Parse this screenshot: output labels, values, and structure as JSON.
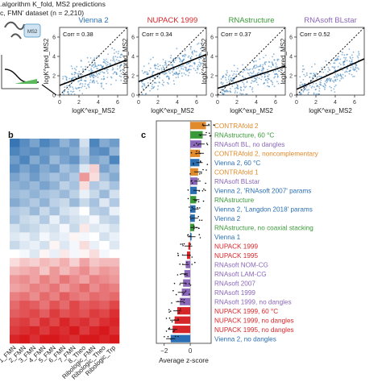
{
  "header": {
    "line1": ".algorithm K_fold, MS2 predictions",
    "line2": "c, FMN' dataset (n = 2,210)"
  },
  "panel_labels": {
    "b": "b",
    "c": "c"
  },
  "colors": {
    "scatter_point": "#2f7ab8",
    "fit_line": "#000000",
    "Vienna": "#2a6fb3",
    "NUPACK": "#d7262a",
    "RNAstructure": "#3a9a3a",
    "RNAsoft": "#8a67b8",
    "CONTRAfold": "#e08a2c",
    "heat_low": "#2166ac",
    "heat_mid": "#ffffff",
    "heat_high": "#d7191c"
  },
  "icons": [
    "ms2-rna-schematic-icon",
    "binding-curve-icon"
  ],
  "schematic_label": "MS2",
  "chart_data": [
    {
      "type": "scatter",
      "title": "Vienna 2",
      "title_color": "#2a6fb3",
      "annotation": "Corr = 0.38",
      "xlabel": "logK^exp_MS2",
      "ylabel": "logK^pred_MS2",
      "xlim": [
        0,
        7
      ],
      "ylim": [
        0,
        7
      ],
      "xticks": [
        0,
        2,
        4,
        6
      ],
      "yticks": [
        0,
        2,
        4,
        6
      ],
      "identity_line": true,
      "fit": {
        "slope": 0.38,
        "intercept": 1.0
      }
    },
    {
      "type": "scatter",
      "title": "NUPACK 1999",
      "title_color": "#d7262a",
      "annotation": "Corr = 0.34",
      "xlabel": "logK^exp_MS2",
      "ylabel": "logK^pred_MS2",
      "xlim": [
        0,
        7
      ],
      "ylim": [
        0,
        7
      ],
      "xticks": [
        0,
        2,
        4,
        6
      ],
      "yticks": [
        0,
        2,
        4,
        6
      ],
      "identity_line": true,
      "fit": {
        "slope": 0.4,
        "intercept": 1.4
      }
    },
    {
      "type": "scatter",
      "title": "RNAstructure",
      "title_color": "#3a9a3a",
      "annotation": "Corr = 0.37",
      "xlabel": "logK^exp_MS2",
      "ylabel": "logK^pred_MS2",
      "xlim": [
        0,
        7
      ],
      "ylim": [
        0,
        7
      ],
      "xticks": [
        0,
        2,
        4,
        6
      ],
      "yticks": [
        0,
        2,
        4,
        6
      ],
      "identity_line": true,
      "fit": {
        "slope": 0.33,
        "intercept": 0.7
      }
    },
    {
      "type": "scatter",
      "title": "RNAsoft BLstar",
      "title_color": "#8a67b8",
      "annotation": "Corr = 0.52",
      "xlabel": "logK^exp_MS2",
      "ylabel": "logK^pred_MS2",
      "xlim": [
        0,
        7
      ],
      "ylim": [
        0,
        7
      ],
      "xticks": [
        0,
        2,
        4,
        6
      ],
      "yticks": [
        0,
        2,
        4,
        6
      ],
      "identity_line": true,
      "fit": {
        "slope": 0.45,
        "intercept": 0.6
      }
    },
    {
      "type": "heatmap",
      "columns": [
        "1_FMN",
        "2_FMN",
        "3_FMN",
        "4_FMN",
        "5_FMN",
        "6_FMN",
        "7_FMN",
        "8_Theo",
        "Ribologic_FMN",
        "Ribologic_Theo",
        "Ribologic_Trp"
      ],
      "values": [
        [
          -1.8,
          -1.5,
          -1.2,
          -1.6,
          -1.4,
          -1.0,
          -1.3,
          -0.4,
          -1.6,
          -1.1,
          -1.3
        ],
        [
          -1.6,
          -1.4,
          -1.5,
          -1.3,
          -1.2,
          -1.3,
          -1.1,
          -0.6,
          -1.4,
          -1.5,
          -1.0
        ],
        [
          -1.3,
          -1.6,
          -1.1,
          -1.4,
          -0.9,
          -1.2,
          -1.4,
          -0.8,
          -1.2,
          -1.0,
          -1.6
        ],
        [
          -1.5,
          -1.2,
          -1.4,
          -1.1,
          -1.3,
          -0.8,
          -1.0,
          -0.3,
          0.4,
          -1.2,
          -0.9
        ],
        [
          -1.2,
          -1.0,
          -1.3,
          -1.0,
          -0.8,
          -1.0,
          -0.7,
          0.9,
          0.3,
          -0.8,
          -1.1
        ],
        [
          -1.0,
          -1.1,
          -0.9,
          -1.2,
          -1.0,
          -0.6,
          -0.8,
          0.3,
          -0.7,
          -0.5,
          -0.8
        ],
        [
          -0.9,
          -0.8,
          -1.0,
          -0.8,
          -0.7,
          -0.9,
          -0.6,
          -0.2,
          -0.5,
          -0.9,
          -0.4
        ],
        [
          -1.1,
          -0.9,
          -0.7,
          -1.0,
          -0.6,
          -0.5,
          -0.9,
          -0.5,
          -0.8,
          -0.3,
          -0.7
        ],
        [
          -0.7,
          -0.6,
          -0.9,
          -0.5,
          -0.8,
          -0.4,
          -0.3,
          0.0,
          -0.6,
          -0.7,
          -0.2
        ],
        [
          -0.8,
          -0.5,
          -0.4,
          -0.7,
          -0.2,
          -0.6,
          -0.4,
          -0.3,
          -0.1,
          -0.5,
          -0.6
        ],
        [
          -0.4,
          -0.6,
          -0.5,
          -0.3,
          -0.4,
          -0.1,
          -0.5,
          0.2,
          -0.3,
          -0.2,
          -0.4
        ],
        [
          -0.3,
          -0.2,
          -0.4,
          -0.1,
          -0.3,
          -0.2,
          0.1,
          -0.1,
          0.0,
          -0.4,
          -0.2
        ],
        [
          -0.5,
          -0.3,
          -0.2,
          -0.4,
          0.1,
          -0.3,
          -0.1,
          0.3,
          -0.2,
          0.0,
          -0.3
        ],
        [
          0.0,
          -0.1,
          -0.3,
          0.1,
          -0.2,
          0.2,
          -0.1,
          0.1,
          0.3,
          -0.1,
          0.0
        ],
        [
          0.3,
          0.5,
          0.4,
          0.6,
          0.5,
          0.7,
          0.4,
          0.8,
          0.5,
          0.6,
          0.6
        ],
        [
          0.6,
          0.7,
          0.8,
          0.5,
          0.9,
          0.6,
          0.8,
          1.0,
          0.7,
          0.9,
          0.8
        ],
        [
          0.9,
          1.0,
          0.8,
          1.1,
          0.9,
          1.2,
          1.0,
          0.8,
          1.1,
          1.0,
          0.9
        ],
        [
          0.8,
          0.9,
          1.1,
          1.0,
          1.2,
          0.9,
          1.1,
          1.3,
          1.0,
          1.2,
          1.1
        ],
        [
          1.1,
          1.2,
          1.0,
          1.3,
          1.1,
          1.4,
          1.2,
          1.1,
          1.3,
          1.2,
          1.3
        ],
        [
          1.3,
          1.5,
          1.4,
          1.2,
          1.5,
          1.3,
          1.6,
          1.4,
          1.5,
          1.4,
          1.6
        ],
        [
          1.4,
          1.5,
          1.6,
          1.4,
          1.7,
          1.5,
          1.6,
          1.5,
          1.7,
          1.6,
          1.8
        ],
        [
          1.6,
          1.7,
          1.5,
          1.8,
          1.6,
          1.9,
          1.7,
          1.8,
          1.6,
          1.8,
          1.9
        ],
        [
          1.7,
          1.8,
          1.9,
          1.7,
          1.9,
          1.8,
          2.0,
          1.7,
          1.9,
          2.0,
          1.8
        ],
        [
          1.9,
          2.0,
          1.8,
          2.0,
          2.0,
          1.9,
          1.8,
          2.0,
          2.0,
          1.9,
          2.0
        ]
      ],
      "value_range": [
        -2,
        2
      ]
    },
    {
      "type": "bar",
      "orientation": "horizontal",
      "xlabel": "Average z-score",
      "xlim": [
        -2.6,
        1.6
      ],
      "xticks": [
        -2,
        0
      ],
      "categories": [
        "CONTRAfold 2",
        "RNAstructure, 60 °C",
        "RNAsoft BL, no dangles",
        "CONTRAfold 2, noncomplementary",
        "Vienna 2, 60 °C",
        "CONTRAfold 1",
        "RNAsoft BLstar",
        "Vienna 2, 'RNAsoft 2007' params",
        "RNAstructure",
        "Vienna 2, 'Langdon 2018' params",
        "Vienna 2",
        "RNAstructure, no coaxial stacking",
        "Vienna 1",
        "NUPACK 1999",
        "NUPACK 1995",
        "RNAsoft NOM-CG",
        "RNAsoft LAM-CG",
        "RNAsoft 2007",
        "RNAsoft 1999",
        "RNAsoft 1999, no dangles",
        "NUPACK 1999, 60 °C",
        "NUPACK 1999, no dangles",
        "NUPACK 1995, no dangles",
        "Vienna 2, no dangles"
      ],
      "families": [
        "CONTRAfold",
        "RNAstructure",
        "RNAsoft",
        "CONTRAfold",
        "Vienna",
        "CONTRAfold",
        "RNAsoft",
        "Vienna",
        "RNAstructure",
        "Vienna",
        "Vienna",
        "RNAstructure",
        "Vienna",
        "NUPACK",
        "NUPACK",
        "RNAsoft",
        "RNAsoft",
        "RNAsoft",
        "RNAsoft",
        "RNAsoft",
        "NUPACK",
        "NUPACK",
        "NUPACK",
        "Vienna"
      ],
      "values": [
        1.2,
        0.95,
        0.85,
        0.75,
        0.7,
        0.6,
        0.55,
        0.5,
        0.45,
        0.4,
        0.35,
        0.3,
        0.1,
        -0.15,
        -0.25,
        -0.35,
        -0.45,
        -0.55,
        -0.65,
        -0.8,
        -1.0,
        -1.2,
        -1.35,
        -1.5
      ],
      "errors": [
        0.3,
        0.3,
        0.25,
        0.3,
        0.25,
        0.3,
        0.25,
        0.25,
        0.25,
        0.25,
        0.25,
        0.3,
        0.3,
        0.3,
        0.3,
        0.25,
        0.25,
        0.25,
        0.3,
        0.3,
        0.3,
        0.35,
        0.35,
        0.35
      ]
    }
  ]
}
